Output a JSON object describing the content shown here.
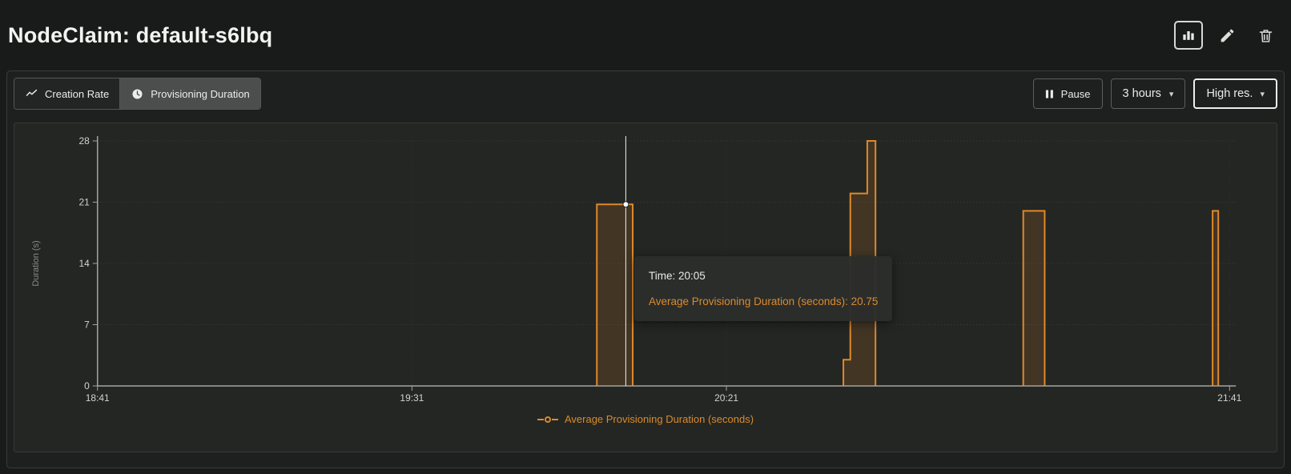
{
  "header": {
    "title": "NodeClaim: default-s6lbq",
    "action_icons": [
      "bar-chart-icon",
      "pencil-icon",
      "trash-icon"
    ]
  },
  "toolbar": {
    "tabs": [
      {
        "label": "Creation Rate",
        "icon": "trend-line-icon",
        "active": false
      },
      {
        "label": "Provisioning Duration",
        "icon": "clock-icon",
        "active": true
      }
    ],
    "pause_label": "Pause",
    "pause_icon": "pause-icon",
    "range_label": "3 hours",
    "resolution_label": "High res.",
    "dropdown_icon": "chevron-down-icon"
  },
  "tooltip": {
    "time": "Time: 20:05",
    "value": "Average Provisioning Duration (seconds): 20.75"
  },
  "legend": {
    "label": "Average Provisioning Duration (seconds)",
    "marker_icon": "line-dot-marker"
  },
  "colors": {
    "accent_orange": "#d98b2e",
    "series_line": "#e0892a",
    "series_fill_opacity": 0.16,
    "crosshair": "#f2f2ef",
    "axis": "#a3a3a0",
    "tick_text": "#d3d3d0",
    "grid": "#3d3f3c",
    "grid_vertical": "#313330",
    "chart_background": "#242623"
  },
  "chart_data": {
    "type": "area",
    "title": "Average Provisioning Duration (seconds)",
    "ylabel": "Duration (s)",
    "ylim": [
      0,
      28
    ],
    "yticks": [
      0,
      7,
      14,
      21,
      28
    ],
    "x_domain_minutes": [
      0,
      181
    ],
    "x_axis_start_label": "18:41",
    "xticks": [
      {
        "t": 0,
        "label": "18:41"
      },
      {
        "t": 50,
        "label": "19:31"
      },
      {
        "t": 100,
        "label": "20:21"
      },
      {
        "t": 180,
        "label": "21:41"
      }
    ],
    "series": [
      {
        "name": "Average Provisioning Duration (seconds)",
        "color": "#e0892a",
        "segments": [
          {
            "t0": 79.4,
            "t1": 85.1,
            "value": 20.75
          },
          {
            "t0": 118.6,
            "t1": 119.7,
            "value": 3
          },
          {
            "t0": 119.7,
            "t1": 122.4,
            "value": 22
          },
          {
            "t0": 122.4,
            "t1": 123.7,
            "value": 28
          },
          {
            "t0": 147.2,
            "t1": 150.6,
            "value": 20
          },
          {
            "t0": 177.3,
            "t1": 178.2,
            "value": 20
          }
        ]
      }
    ],
    "crosshair": {
      "t": 84,
      "time_label": "20:05",
      "value": 20.75
    },
    "grid": "dotted",
    "legend_position": "bottom-center"
  }
}
